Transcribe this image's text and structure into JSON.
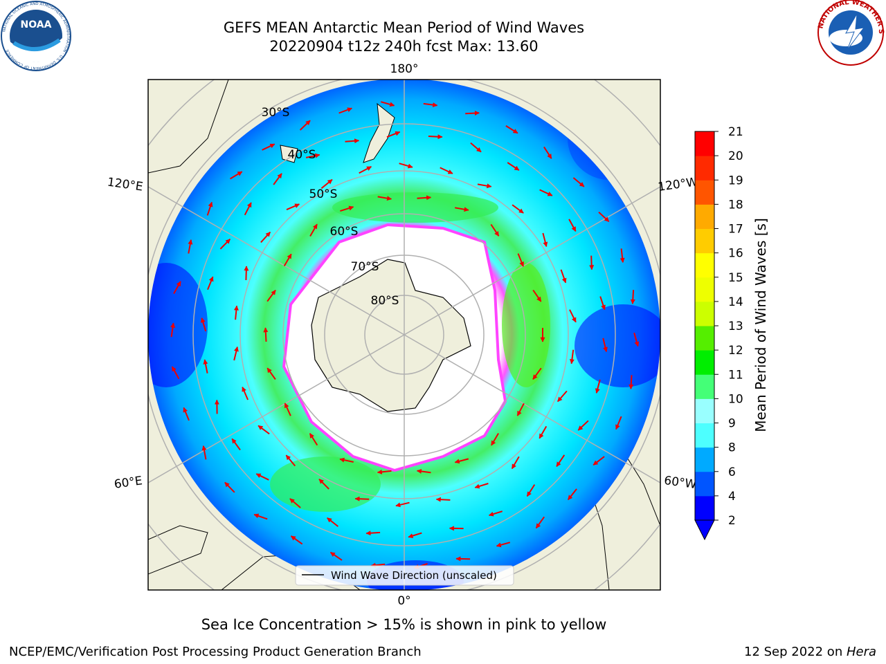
{
  "header": {
    "title": "GEFS MEAN Antarctic Mean Period of Wind Waves",
    "subtitle": "20220904 t12z 240h fcst   Max: 13.60",
    "left_logo_text": "NOAA",
    "left_logo_ring": "NATIONAL OCEANIC AND ATMOSPHERIC ADMINISTRATION · U.S. DEPARTMENT OF COMMERCE",
    "right_logo_ring": "NATIONAL WEATHER SERVICE"
  },
  "map": {
    "projection": "south-polar-stereographic",
    "meridian_labels": {
      "top": "180°",
      "bottom": "0°",
      "left_upper": "120°E",
      "left_lower": "60°E",
      "right_upper": "120°W",
      "right_lower": "60°W"
    },
    "latitude_labels": [
      "30°S",
      "40°S",
      "50°S",
      "60°S",
      "70°S",
      "80°S"
    ],
    "legend": "Wind Wave Direction (unscaled)",
    "ice_note": "Sea Ice Concentration > 15% is shown in pink to yellow"
  },
  "colorbar": {
    "label": "Mean Period of Wind Waves [s]",
    "ticks": [
      "2",
      "4",
      "6",
      "8",
      "9",
      "10",
      "11",
      "12",
      "13",
      "14",
      "15",
      "16",
      "17",
      "18",
      "19",
      "20",
      "21"
    ],
    "colors": [
      "#0000ff",
      "#0055ff",
      "#00aaff",
      "#00e5ff",
      "#4dffff",
      "#99ffff",
      "#44ff77",
      "#00ee00",
      "#55ee00",
      "#aaee00",
      "#ccff00",
      "#eeff00",
      "#ffff00",
      "#ffcc00",
      "#ffaa00",
      "#ff8000",
      "#ff5500",
      "#ff2a00",
      "#ff0000"
    ],
    "extend_min_color": "#0000ff"
  },
  "footer": {
    "left": "NCEP/EMC/Verification Post Processing Product Generation Branch",
    "right_date": "12 Sep 2022 on ",
    "right_machine": "Hera"
  }
}
